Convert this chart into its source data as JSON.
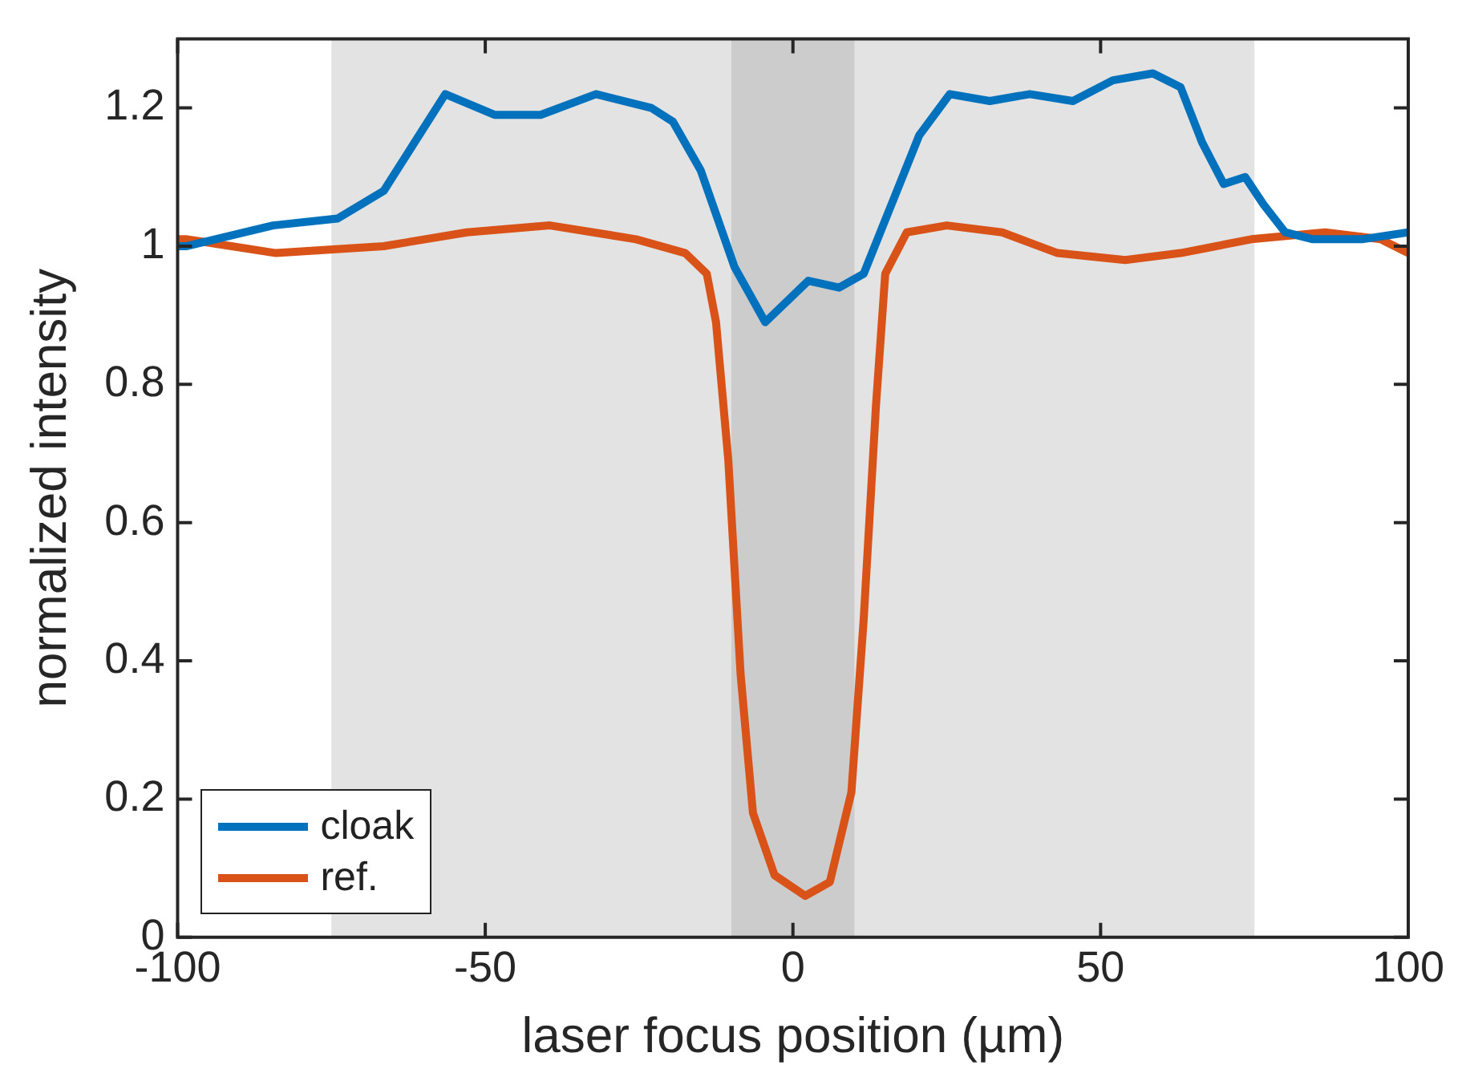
{
  "chart_data": {
    "type": "line",
    "xlabel": "laser focus position (µm)",
    "ylabel": "normalized intensity",
    "xlim": [
      -100,
      100
    ],
    "xticks": [
      -100,
      -50,
      0,
      50,
      100
    ],
    "ylim": [
      0,
      1.3
    ],
    "yticks": [
      0,
      0.2,
      0.4,
      0.6,
      0.8,
      1,
      1.2
    ],
    "grid": false,
    "legend": "bottom left",
    "marker": "none",
    "line_style": "solid",
    "bands": [
      {
        "axis": "x",
        "from": -75,
        "to": 75,
        "color": "#e3e3e3"
      },
      {
        "axis": "x",
        "from": -10,
        "to": 10,
        "color": "#cccccc"
      }
    ],
    "series": [
      {
        "name": "cloak",
        "color": "#0072bd",
        "x": [
          -100,
          -98.5,
          -84.5,
          -74,
          -66.5,
          -56.5,
          -48.5,
          -41,
          -32,
          -23,
          -19.5,
          -15,
          -9.5,
          -4.5,
          2.5,
          7.5,
          11.5,
          16,
          20.5,
          25.5,
          32,
          38.5,
          45.5,
          52,
          58.5,
          63,
          66.5,
          70,
          73.5,
          76.5,
          80,
          84.5,
          92.5,
          100
        ],
        "values": [
          1.0,
          1.0,
          1.03,
          1.04,
          1.08,
          1.22,
          1.19,
          1.19,
          1.22,
          1.2,
          1.18,
          1.11,
          0.97,
          0.89,
          0.95,
          0.94,
          0.96,
          1.06,
          1.16,
          1.22,
          1.21,
          1.22,
          1.21,
          1.24,
          1.25,
          1.23,
          1.15,
          1.09,
          1.1,
          1.06,
          1.02,
          1.01,
          1.01,
          1.02
        ]
      },
      {
        "name": "ref.",
        "color": "#d95319",
        "x": [
          -100,
          -98.5,
          -84,
          -66.5,
          -53,
          -39.5,
          -25.5,
          -17.5,
          -14,
          -12.5,
          -10.5,
          -8.5,
          -6.5,
          -3,
          2,
          6,
          9.5,
          11.5,
          13.5,
          15,
          18.5,
          25,
          34,
          43,
          54,
          63,
          74.5,
          86.5,
          95.5,
          100
        ],
        "values": [
          1.01,
          1.01,
          0.99,
          1.0,
          1.02,
          1.03,
          1.01,
          0.99,
          0.96,
          0.89,
          0.69,
          0.38,
          0.18,
          0.09,
          0.06,
          0.08,
          0.21,
          0.46,
          0.77,
          0.96,
          1.02,
          1.03,
          1.02,
          0.99,
          0.98,
          0.99,
          1.01,
          1.02,
          1.01,
          0.99
        ]
      }
    ]
  }
}
